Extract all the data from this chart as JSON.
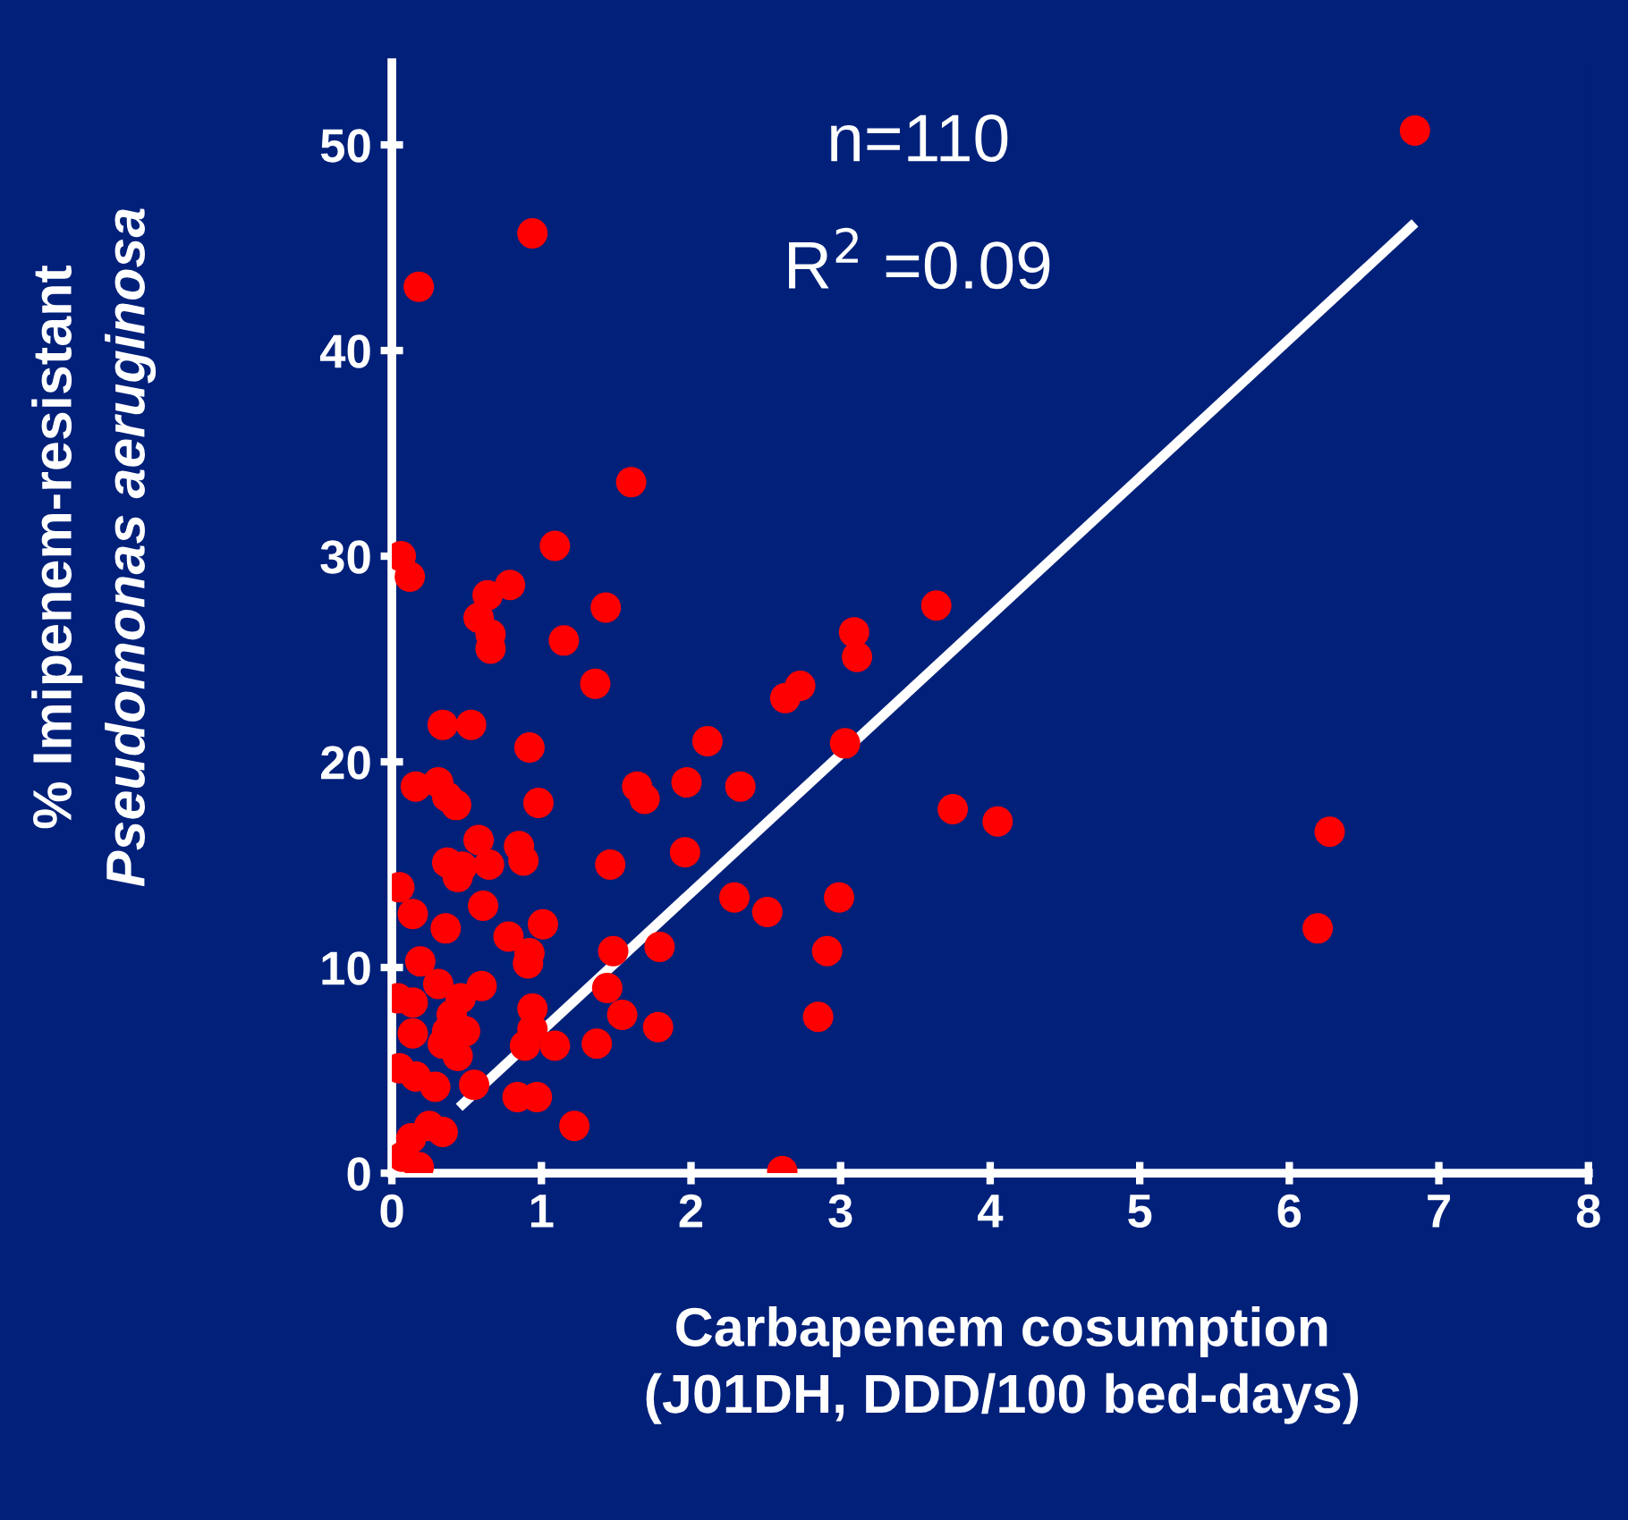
{
  "chart_data": {
    "type": "scatter",
    "xlabel": "Carbapenem cosumption\n(J01DH, DDD/100 bed-days)",
    "ylabel": "% Imipenem-resistant\nPseudomonas aeruginosa",
    "annotations": [
      "n=110",
      "R$^{2}$ =0.09"
    ],
    "xlim": [
      0,
      8
    ],
    "ylim": [
      0,
      54
    ],
    "xticks": [
      0,
      1,
      2,
      3,
      4,
      5,
      6,
      7,
      8
    ],
    "yticks": [
      0,
      10,
      20,
      30,
      40,
      50
    ],
    "grid": false,
    "legend": false,
    "series": [
      {
        "marker": "circle",
        "color": "#ff0000",
        "x": [
          6.84,
          0.94,
          0.18,
          1.6,
          0.06,
          0.12,
          1.09,
          0.79,
          0.64,
          0.58,
          0.66,
          0.66,
          1.15,
          1.43,
          1.36,
          0.34,
          0.53,
          0.92,
          0.98,
          0.16,
          0.31,
          0.37,
          0.43,
          1.64,
          1.69,
          1.97,
          2.11,
          2.33,
          2.63,
          2.73,
          3.09,
          3.11,
          3.64,
          3.03,
          3.75,
          4.05,
          6.27,
          6.19,
          1.96,
          1.46,
          2.29,
          2.51,
          2.99,
          2.91,
          2.85,
          2.61,
          1.79,
          1.48,
          1.44,
          1.78,
          1.54,
          1.37,
          1.22,
          0.58,
          0.37,
          0.47,
          0.65,
          0.85,
          0.88,
          0.44,
          0.61,
          0.05,
          0.14,
          0.36,
          0.78,
          1.01,
          0.92,
          0.91,
          0.19,
          0.31,
          0.6,
          0.04,
          0.14,
          0.46,
          0.4,
          0.14,
          0.37,
          0.49,
          0.34,
          0.44,
          0.94,
          0.94,
          0.89,
          1.09,
          0.05,
          0.16,
          0.29,
          0.55,
          0.84,
          0.97,
          0.25,
          0.34,
          0.13,
          0.18,
          0.07
        ],
        "values": [
          50.7,
          45.7,
          43.1,
          33.6,
          30.0,
          29.0,
          30.5,
          28.6,
          28.1,
          27.0,
          26.2,
          25.5,
          25.9,
          27.5,
          23.8,
          21.8,
          21.8,
          20.7,
          18.0,
          18.8,
          19.0,
          18.3,
          17.9,
          18.8,
          18.2,
          19.0,
          21.0,
          18.8,
          23.1,
          23.7,
          26.3,
          25.1,
          27.6,
          20.9,
          17.7,
          17.1,
          16.6,
          11.9,
          15.6,
          15.0,
          13.4,
          12.7,
          13.4,
          10.8,
          7.6,
          0.1,
          11.0,
          10.8,
          9.0,
          7.1,
          7.7,
          6.3,
          2.3,
          16.2,
          15.1,
          14.9,
          15.0,
          15.9,
          15.2,
          14.4,
          13.0,
          13.9,
          12.6,
          11.9,
          11.5,
          12.1,
          10.7,
          10.2,
          10.3,
          9.2,
          9.1,
          8.5,
          8.3,
          8.5,
          7.7,
          6.8,
          6.9,
          6.9,
          6.3,
          5.7,
          8.0,
          7.0,
          6.2,
          6.2,
          5.1,
          4.7,
          4.2,
          4.3,
          3.7,
          3.7,
          2.3,
          2.0,
          1.7,
          0.3,
          0.8
        ]
      },
      {
        "type": "line",
        "color": "#ffffff",
        "x": [
          0.45,
          6.84
        ],
        "values": [
          3.2,
          46.2
        ]
      }
    ]
  }
}
